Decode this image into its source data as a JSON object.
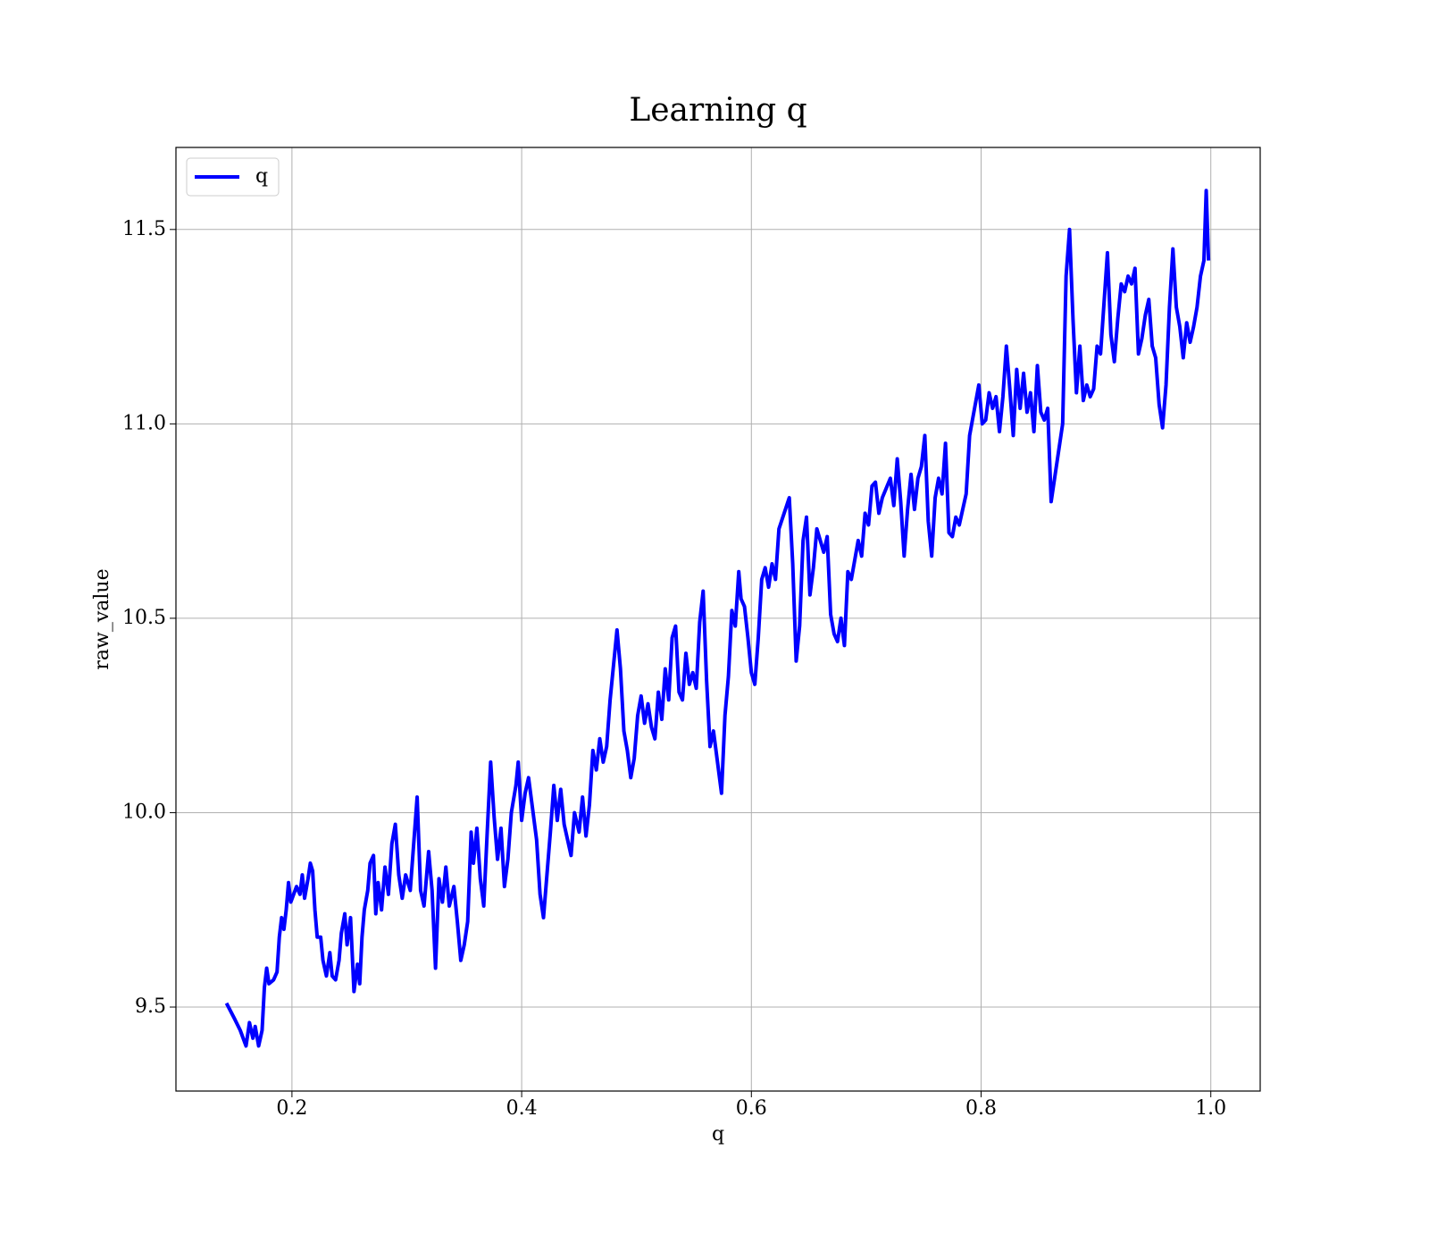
{
  "chart_data": {
    "type": "line",
    "title": "Learning q",
    "xlabel": "q",
    "ylabel": "raw_value",
    "x": [
      0.143,
      0.15,
      0.155,
      0.16,
      0.163,
      0.166,
      0.168,
      0.171,
      0.174,
      0.176,
      0.178,
      0.18,
      0.184,
      0.187,
      0.189,
      0.191,
      0.193,
      0.195,
      0.197,
      0.199,
      0.204,
      0.207,
      0.209,
      0.211,
      0.214,
      0.216,
      0.218,
      0.22,
      0.222,
      0.225,
      0.227,
      0.23,
      0.233,
      0.235,
      0.238,
      0.241,
      0.243,
      0.246,
      0.248,
      0.251,
      0.254,
      0.257,
      0.259,
      0.261,
      0.263,
      0.266,
      0.268,
      0.271,
      0.273,
      0.275,
      0.278,
      0.281,
      0.284,
      0.287,
      0.29,
      0.293,
      0.296,
      0.299,
      0.303,
      0.309,
      0.312,
      0.315,
      0.319,
      0.322,
      0.325,
      0.328,
      0.331,
      0.334,
      0.337,
      0.341,
      0.344,
      0.347,
      0.35,
      0.353,
      0.356,
      0.358,
      0.361,
      0.364,
      0.367,
      0.37,
      0.373,
      0.376,
      0.379,
      0.382,
      0.385,
      0.388,
      0.391,
      0.395,
      0.397,
      0.4,
      0.403,
      0.406,
      0.413,
      0.416,
      0.419,
      0.422,
      0.425,
      0.428,
      0.431,
      0.434,
      0.437,
      0.44,
      0.443,
      0.446,
      0.45,
      0.453,
      0.456,
      0.459,
      0.462,
      0.465,
      0.468,
      0.471,
      0.474,
      0.477,
      0.483,
      0.486,
      0.489,
      0.492,
      0.495,
      0.498,
      0.501,
      0.504,
      0.507,
      0.51,
      0.513,
      0.516,
      0.519,
      0.522,
      0.525,
      0.528,
      0.531,
      0.534,
      0.537,
      0.54,
      0.543,
      0.546,
      0.549,
      0.552,
      0.555,
      0.558,
      0.561,
      0.564,
      0.567,
      0.574,
      0.577,
      0.58,
      0.583,
      0.586,
      0.589,
      0.591,
      0.594,
      0.597,
      0.6,
      0.603,
      0.606,
      0.609,
      0.612,
      0.615,
      0.618,
      0.621,
      0.624,
      0.633,
      0.636,
      0.639,
      0.642,
      0.645,
      0.648,
      0.651,
      0.654,
      0.657,
      0.66,
      0.663,
      0.666,
      0.669,
      0.672,
      0.675,
      0.678,
      0.681,
      0.684,
      0.687,
      0.69,
      0.693,
      0.696,
      0.699,
      0.702,
      0.705,
      0.708,
      0.711,
      0.714,
      0.721,
      0.724,
      0.727,
      0.73,
      0.733,
      0.736,
      0.739,
      0.742,
      0.745,
      0.748,
      0.751,
      0.754,
      0.757,
      0.76,
      0.763,
      0.766,
      0.769,
      0.772,
      0.775,
      0.778,
      0.781,
      0.784,
      0.787,
      0.79,
      0.798,
      0.801,
      0.804,
      0.807,
      0.81,
      0.813,
      0.816,
      0.819,
      0.822,
      0.825,
      0.828,
      0.831,
      0.834,
      0.837,
      0.84,
      0.843,
      0.846,
      0.849,
      0.852,
      0.855,
      0.858,
      0.861,
      0.871,
      0.874,
      0.877,
      0.88,
      0.883,
      0.886,
      0.889,
      0.892,
      0.895,
      0.898,
      0.901,
      0.904,
      0.907,
      0.91,
      0.913,
      0.916,
      0.919,
      0.922,
      0.925,
      0.928,
      0.931,
      0.934,
      0.937,
      0.94,
      0.943,
      0.946,
      0.949,
      0.952,
      0.955,
      0.958,
      0.961,
      0.964,
      0.967,
      0.97,
      0.973,
      0.976,
      0.979,
      0.982,
      0.985,
      0.988,
      0.991,
      0.994,
      0.996,
      0.998
    ],
    "series": [
      {
        "name": "q",
        "color": "#0000ff",
        "values": [
          9.51,
          9.47,
          9.44,
          9.4,
          9.46,
          9.42,
          9.45,
          9.4,
          9.44,
          9.55,
          9.6,
          9.56,
          9.57,
          9.59,
          9.68,
          9.73,
          9.7,
          9.75,
          9.82,
          9.77,
          9.81,
          9.79,
          9.84,
          9.78,
          9.83,
          9.87,
          9.85,
          9.75,
          9.68,
          9.68,
          9.62,
          9.58,
          9.64,
          9.58,
          9.57,
          9.62,
          9.69,
          9.74,
          9.66,
          9.73,
          9.54,
          9.61,
          9.56,
          9.68,
          9.75,
          9.8,
          9.87,
          9.89,
          9.74,
          9.82,
          9.75,
          9.86,
          9.79,
          9.92,
          9.97,
          9.84,
          9.78,
          9.84,
          9.8,
          10.04,
          9.8,
          9.76,
          9.9,
          9.8,
          9.6,
          9.83,
          9.77,
          9.86,
          9.76,
          9.81,
          9.72,
          9.62,
          9.66,
          9.72,
          9.95,
          9.87,
          9.96,
          9.83,
          9.76,
          9.95,
          10.13,
          9.99,
          9.88,
          9.96,
          9.81,
          9.88,
          10.0,
          10.07,
          10.13,
          9.98,
          10.05,
          10.09,
          9.93,
          9.79,
          9.73,
          9.84,
          9.95,
          10.07,
          9.98,
          10.06,
          9.97,
          9.93,
          9.89,
          10.0,
          9.95,
          10.04,
          9.94,
          10.02,
          10.16,
          10.11,
          10.19,
          10.13,
          10.17,
          10.29,
          10.47,
          10.37,
          10.21,
          10.16,
          10.09,
          10.14,
          10.25,
          10.3,
          10.23,
          10.28,
          10.22,
          10.19,
          10.31,
          10.24,
          10.37,
          10.29,
          10.45,
          10.48,
          10.31,
          10.29,
          10.41,
          10.33,
          10.36,
          10.32,
          10.49,
          10.57,
          10.34,
          10.17,
          10.21,
          10.05,
          10.25,
          10.35,
          10.52,
          10.48,
          10.62,
          10.55,
          10.53,
          10.45,
          10.36,
          10.33,
          10.45,
          10.6,
          10.63,
          10.58,
          10.64,
          10.6,
          10.73,
          10.81,
          10.64,
          10.39,
          10.48,
          10.7,
          10.76,
          10.56,
          10.63,
          10.73,
          10.7,
          10.67,
          10.71,
          10.51,
          10.46,
          10.44,
          10.5,
          10.43,
          10.62,
          10.6,
          10.65,
          10.7,
          10.66,
          10.77,
          10.74,
          10.84,
          10.85,
          10.77,
          10.81,
          10.86,
          10.79,
          10.91,
          10.8,
          10.66,
          10.78,
          10.87,
          10.78,
          10.86,
          10.89,
          10.97,
          10.75,
          10.66,
          10.81,
          10.86,
          10.82,
          10.95,
          10.72,
          10.71,
          10.76,
          10.74,
          10.78,
          10.82,
          10.97,
          11.1,
          11.0,
          11.01,
          11.08,
          11.04,
          11.07,
          10.98,
          11.07,
          11.2,
          11.09,
          10.97,
          11.14,
          11.04,
          11.13,
          11.03,
          11.08,
          10.98,
          11.15,
          11.03,
          11.01,
          11.04,
          10.8,
          11.0,
          11.38,
          11.5,
          11.27,
          11.08,
          11.2,
          11.06,
          11.1,
          11.07,
          11.09,
          11.2,
          11.18,
          11.31,
          11.44,
          11.23,
          11.16,
          11.27,
          11.36,
          11.34,
          11.38,
          11.36,
          11.4,
          11.18,
          11.22,
          11.28,
          11.32,
          11.2,
          11.17,
          11.05,
          10.99,
          11.1,
          11.3,
          11.45,
          11.3,
          11.25,
          11.17,
          11.26,
          11.21,
          11.25,
          11.3,
          11.38,
          11.42,
          11.6,
          11.42
        ]
      }
    ],
    "xlim": [
      0.099,
      1.043
    ],
    "ylim": [
      9.284,
      11.711
    ],
    "xticks": [
      0.2,
      0.4,
      0.6,
      0.8,
      {
        "value": 1.0,
        "label": "1.0"
      }
    ],
    "yticks": [
      9.5,
      {
        "value": 10.0,
        "label": "10.0"
      },
      10.5,
      {
        "value": 11.0,
        "label": "11.0"
      },
      11.5
    ],
    "grid": true,
    "legend": "upper left"
  }
}
